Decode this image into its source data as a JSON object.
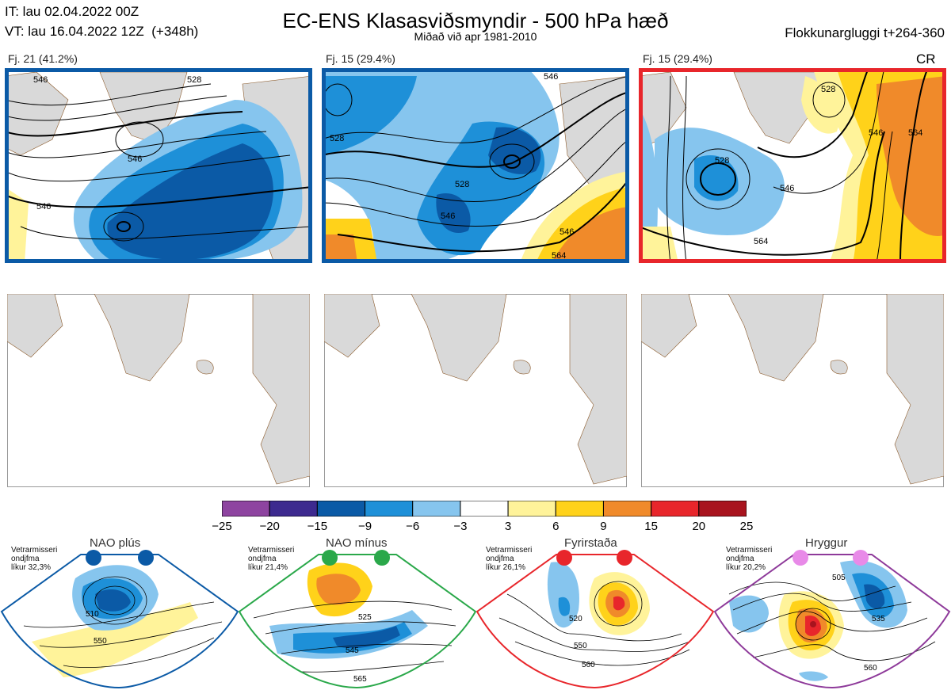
{
  "header": {
    "it_line": "IT: lau 02.04.2022 00Z",
    "vt_line": "VT: lau 16.04.2022 12Z  (+348h)",
    "title": "EC-ENS Klasasviðsmyndir - 500 hPa hæð",
    "subtitle": "Miðað við apr 1981-2010",
    "window": "Flokkunargluggi t+264-360"
  },
  "clusters": [
    {
      "label": "Fj. 21 (41.2%)",
      "frame_color": "#0b5aa6",
      "contours": [
        "546",
        "546",
        "528",
        "546"
      ],
      "tag": ""
    },
    {
      "label": "Fj. 15 (29.4%)",
      "frame_color": "#0b5aa6",
      "contours": [
        "528",
        "528",
        "546",
        "546",
        "546",
        "564"
      ],
      "tag": ""
    },
    {
      "label": "Fj. 15 (29.4%)",
      "frame_color": "#e8262b",
      "contours": [
        "528",
        "528",
        "546",
        "564",
        "546",
        "564"
      ],
      "tag": "CR"
    }
  ],
  "colorbar": {
    "ticks": [
      "−25",
      "−20",
      "−15",
      "−9",
      "−6",
      "−3",
      "3",
      "6",
      "9",
      "15",
      "20",
      "25"
    ],
    "colors": [
      "#8e44a0",
      "#3d2a8f",
      "#0b5aa6",
      "#1e90d8",
      "#86c5ee",
      "#ffffff",
      "#fff39a",
      "#ffd21a",
      "#f08a2a",
      "#e8262b",
      "#a8141e"
    ]
  },
  "regimes": [
    {
      "name": "NAO plús",
      "info": [
        "Vetrarmisseri",
        "ondjfma",
        "líkur 32,3%"
      ],
      "color": "#0b5aa6",
      "contours": [
        "510",
        "550"
      ]
    },
    {
      "name": "NAO mínus",
      "info": [
        "Vetrarmisseri",
        "ondjfma",
        "líkur 21,4%"
      ],
      "color": "#2aa84a",
      "contours": [
        "525",
        "545",
        "565"
      ]
    },
    {
      "name": "Fyrirstaða",
      "info": [
        "Vetrarmisseri",
        "ondjfma",
        "líkur 26,1%"
      ],
      "color": "#e8262b",
      "contours": [
        "520",
        "550",
        "560"
      ]
    },
    {
      "name": "Hryggur",
      "info": [
        "Vetrarmisseri",
        "ondjfma",
        "líkur 20,2%"
      ],
      "color": "#8e3a9a",
      "contours": [
        "505",
        "535",
        "560"
      ]
    }
  ]
}
